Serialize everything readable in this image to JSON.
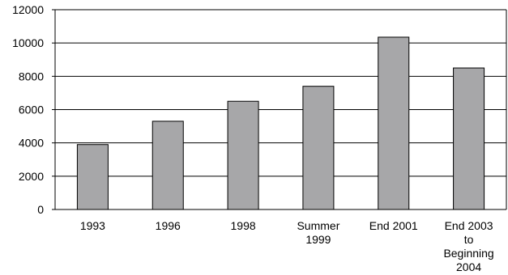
{
  "chart_data": {
    "type": "bar",
    "title": "",
    "xlabel": "",
    "ylabel": "",
    "categories": [
      [
        "1993"
      ],
      [
        "1996"
      ],
      [
        "1998"
      ],
      [
        "Summer",
        "1999"
      ],
      [
        "End 2001"
      ],
      [
        "End 2003",
        "to",
        "Beginning",
        "2004"
      ]
    ],
    "values": [
      3900,
      5300,
      6500,
      7400,
      10350,
      8500
    ],
    "ylim": [
      0,
      12000
    ],
    "yticks": [
      "0",
      "2000",
      "4000",
      "6000",
      "8000",
      "10000",
      "12000"
    ],
    "grid": true,
    "bar_color": "#a7a7a9",
    "bar_stroke": "#000000"
  }
}
